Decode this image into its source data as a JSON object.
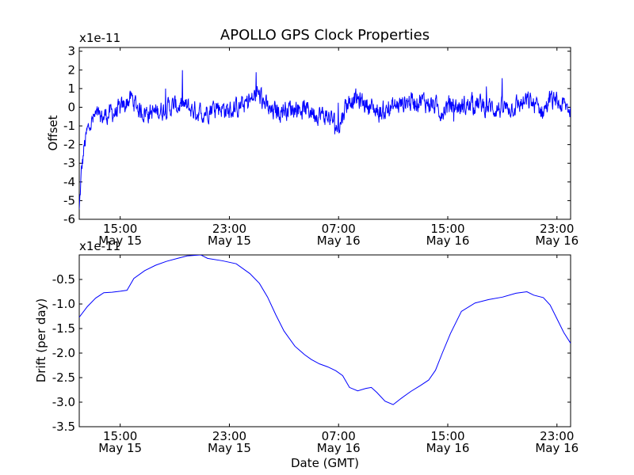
{
  "figure": {
    "title": "APOLLO GPS Clock Properties",
    "xlabel": "Date (GMT)"
  },
  "chart_data": [
    {
      "type": "line",
      "name": "offset",
      "ylabel": "Offset",
      "y_multiplier": "x1e-11",
      "xlim": [
        12.0,
        48.0
      ],
      "ylim": [
        -6,
        3.2
      ],
      "yticks": [
        -6,
        -5,
        -4,
        -3,
        -2,
        -1,
        0,
        1,
        2,
        3
      ],
      "ytick_labels": [
        "-6",
        "-5",
        "-4",
        "-3",
        "-2",
        "-1",
        "0",
        "1",
        "2",
        "3"
      ],
      "xticks": [
        15,
        23,
        31,
        39,
        47
      ],
      "xtick_labels": [
        [
          "15:00",
          "May 15"
        ],
        [
          "23:00",
          "May 15"
        ],
        [
          "07:00",
          "May 16"
        ],
        [
          "15:00",
          "May 16"
        ],
        [
          "23:00",
          "May 16"
        ]
      ],
      "line_color": "#0000ff",
      "noise_amplitude": 0.42,
      "series": [
        {
          "name": "offset",
          "x": [
            12.0,
            12.15,
            12.35,
            12.6,
            12.9,
            13.2,
            13.6,
            14.0,
            14.5,
            15.0,
            15.4,
            15.8,
            16.5,
            17.5,
            18.5,
            19.5,
            20.5,
            21.0,
            22.0,
            23.0,
            24.0,
            24.7,
            25.0,
            25.5,
            26.0,
            27.0,
            28.0,
            29.0,
            30.5,
            31.0,
            31.5,
            32.0,
            33.0,
            34.0,
            35.0,
            36.0,
            37.0,
            38.0,
            38.5,
            39.0,
            40.0,
            41.0,
            42.0,
            43.0,
            44.0,
            45.0,
            46.0,
            46.5,
            47.0,
            48.0
          ],
          "y": [
            -5.6,
            -3.6,
            -2.2,
            -1.3,
            -0.8,
            -0.5,
            -0.6,
            -0.4,
            -0.3,
            -0.2,
            0.2,
            0.5,
            -0.2,
            -0.3,
            0.0,
            0.1,
            -0.2,
            -0.3,
            0.1,
            -0.2,
            0.1,
            0.4,
            0.8,
            0.3,
            -0.3,
            -0.1,
            0.0,
            -0.2,
            -0.6,
            -1.2,
            0.1,
            0.5,
            0.2,
            -0.3,
            0.0,
            0.3,
            0.4,
            0.1,
            -0.2,
            0.1,
            0.0,
            0.2,
            0.0,
            -0.1,
            0.1,
            0.3,
            -0.2,
            0.4,
            0.2,
            -0.1
          ]
        }
      ]
    },
    {
      "type": "line",
      "name": "drift",
      "ylabel": "Drift (per day)",
      "y_multiplier": "x1e-11",
      "xlim": [
        12.0,
        48.0
      ],
      "ylim": [
        -3.5,
        0.0
      ],
      "yticks": [
        -3.5,
        -3.0,
        -2.5,
        -2.0,
        -1.5,
        -1.0,
        -0.5
      ],
      "ytick_labels": [
        "-3.5",
        "-3.0",
        "-2.5",
        "-2.0",
        "-1.5",
        "-1.0",
        "-0.5"
      ],
      "xticks": [
        15,
        23,
        31,
        39,
        47
      ],
      "xtick_labels": [
        [
          "15:00",
          "May 15"
        ],
        [
          "23:00",
          "May 15"
        ],
        [
          "07:00",
          "May 16"
        ],
        [
          "15:00",
          "May 16"
        ],
        [
          "23:00",
          "May 16"
        ]
      ],
      "line_color": "#0000ff",
      "series": [
        {
          "name": "drift",
          "x": [
            12.0,
            12.6,
            13.2,
            13.8,
            14.4,
            15.0,
            15.5,
            16.0,
            16.8,
            17.6,
            18.4,
            19.2,
            19.9,
            20.4,
            20.9,
            21.4,
            22.5,
            23.5,
            24.5,
            25.2,
            25.8,
            26.4,
            27.0,
            27.8,
            28.5,
            29.0,
            29.6,
            30.2,
            30.8,
            31.3,
            31.8,
            32.4,
            33.0,
            33.4,
            33.8,
            34.4,
            35.0,
            35.6,
            36.3,
            37.0,
            37.6,
            38.1,
            38.6,
            39.2,
            40.0,
            41.0,
            42.0,
            43.0,
            44.0,
            44.8,
            45.3,
            46.0,
            46.5,
            47.0,
            47.5,
            48.0
          ],
          "y": [
            -1.27,
            -1.05,
            -0.88,
            -0.77,
            -0.76,
            -0.74,
            -0.72,
            -0.48,
            -0.32,
            -0.21,
            -0.13,
            -0.07,
            -0.02,
            -0.01,
            0.0,
            -0.07,
            -0.12,
            -0.18,
            -0.38,
            -0.58,
            -0.86,
            -1.22,
            -1.55,
            -1.86,
            -2.03,
            -2.13,
            -2.22,
            -2.28,
            -2.36,
            -2.46,
            -2.7,
            -2.77,
            -2.72,
            -2.7,
            -2.8,
            -2.98,
            -3.05,
            -2.92,
            -2.78,
            -2.66,
            -2.55,
            -2.35,
            -2.0,
            -1.6,
            -1.15,
            -0.98,
            -0.91,
            -0.86,
            -0.78,
            -0.75,
            -0.82,
            -0.87,
            -1.02,
            -1.3,
            -1.58,
            -1.8
          ]
        }
      ]
    }
  ]
}
